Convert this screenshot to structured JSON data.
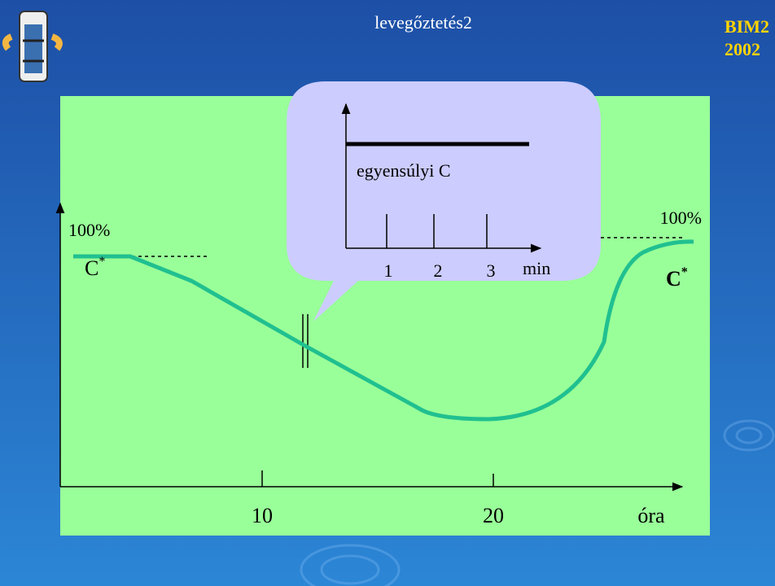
{
  "header": {
    "title": "levegőztetés2",
    "badge_line1": "BIM2",
    "badge_line2": "2002"
  },
  "main_plot": {
    "y_label": "100%",
    "start_label": {
      "base": "C",
      "sup": "*"
    },
    "x_ticks": [
      "10",
      "20"
    ],
    "x_label": "óra",
    "end_label": "100%",
    "end_marker": {
      "base": "C",
      "sup": "*"
    }
  },
  "inset": {
    "line_label": "egyensúlyi C",
    "x_ticks": [
      "1",
      "2",
      "3"
    ],
    "x_label": "min"
  }
}
